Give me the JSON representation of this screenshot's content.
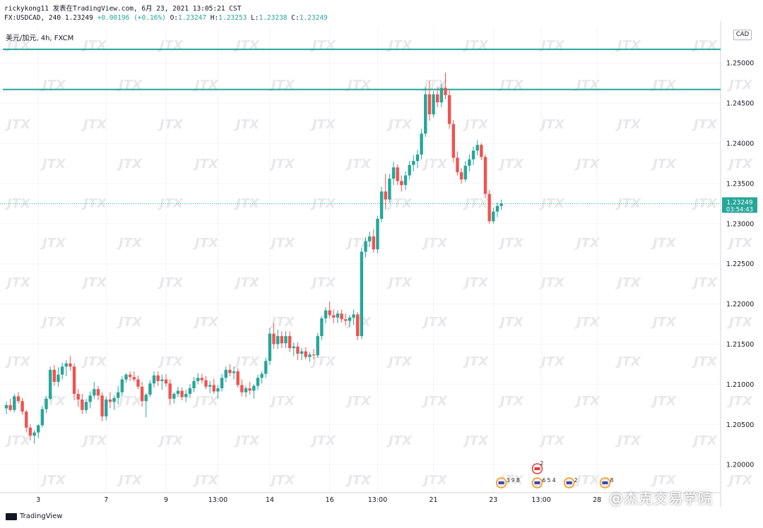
{
  "header": {
    "author_line": "rickykong11 发表在TradingView.com, 6月 23, 2021 13:05:21 CST",
    "ohlc_prefix": "FX:USDCAD, 240",
    "ohlc_last": "1.23249",
    "ohlc_change": "+0.00196 (+0.16%)",
    "o_label": "O:",
    "o_value": "1.23247",
    "h_label": "H:",
    "h_value": "1.23253",
    "l_label": "L:",
    "l_value": "1.23238",
    "c_label": "C:",
    "c_value": "1.23249"
  },
  "symbol_line": "美元/加元, 4h, FXCM",
  "currency": "CAD",
  "last_price": {
    "value": "1.23249",
    "countdown": "03:54:43"
  },
  "branding": {
    "logo": "TradingView",
    "watermark": "JTX",
    "wechat": "@杰克交易学院"
  },
  "colors": {
    "up": "#26a69a",
    "down": "#ef5350",
    "hline": "#26a69a",
    "grid": "#f0f3fa"
  },
  "event_markers": [
    {
      "icon": "us-flag-icon",
      "label": "3 9 8",
      "x_index": 124
    },
    {
      "icon": "us-flag-icon",
      "label": "6 5 4",
      "x_index": 133
    },
    {
      "icon": "ca-flag-icon",
      "label": "2",
      "x_index": 133,
      "stacked": true
    },
    {
      "icon": "us-flag-icon",
      "label": "2",
      "x_index": 141
    },
    {
      "icon": "us-flag-icon",
      "label": "8",
      "x_index": 150
    }
  ],
  "chart_data": {
    "type": "candlestick",
    "instrument": "USDCAD",
    "timeframe": "4h",
    "y_ticks": [
      "1.25000",
      "1.24500",
      "1.24000",
      "1.23500",
      "1.23000",
      "1.22500",
      "1.22000",
      "1.21500",
      "1.21000",
      "1.20500",
      "1.20000"
    ],
    "ylim": [
      1.1965,
      1.2545
    ],
    "x_ticks": [
      {
        "label": "3",
        "index": 8
      },
      {
        "label": "7",
        "index": 25
      },
      {
        "label": "9",
        "index": 40
      },
      {
        "label": "13:00",
        "index": 53
      },
      {
        "label": "14",
        "index": 66
      },
      {
        "label": "16",
        "index": 81
      },
      {
        "label": "13:00",
        "index": 93
      },
      {
        "label": "21",
        "index": 107
      },
      {
        "label": "23",
        "index": 122
      },
      {
        "label": "13:00",
        "index": 134
      },
      {
        "label": "28",
        "index": 148
      }
    ],
    "x_count": 181,
    "horizontal_lines": [
      1.2517,
      1.2467
    ],
    "last_price_line": 1.23249,
    "grid": true,
    "candles": [
      [
        1.207,
        1.2078,
        1.2063,
        1.2074
      ],
      [
        1.2074,
        1.2082,
        1.2066,
        1.2068
      ],
      [
        1.2068,
        1.2088,
        1.2065,
        1.2085
      ],
      [
        1.2085,
        1.209,
        1.2076,
        1.2079
      ],
      [
        1.2079,
        1.2083,
        1.2062,
        1.2066
      ],
      [
        1.2066,
        1.2068,
        1.204,
        1.2046
      ],
      [
        1.2046,
        1.205,
        1.203,
        1.2036
      ],
      [
        1.2036,
        1.2043,
        1.2026,
        1.204
      ],
      [
        1.204,
        1.205,
        1.2033,
        1.2049
      ],
      [
        1.2049,
        1.2072,
        1.2046,
        1.2069
      ],
      [
        1.2069,
        1.2085,
        1.2064,
        1.2082
      ],
      [
        1.2082,
        1.2122,
        1.208,
        1.2118
      ],
      [
        1.2118,
        1.2124,
        1.2098,
        1.2103
      ],
      [
        1.2103,
        1.2121,
        1.2097,
        1.2112
      ],
      [
        1.2112,
        1.2127,
        1.2106,
        1.2122
      ],
      [
        1.2122,
        1.213,
        1.211,
        1.2126
      ],
      [
        1.2126,
        1.2135,
        1.2117,
        1.2122
      ],
      [
        1.2122,
        1.2126,
        1.208,
        1.2088
      ],
      [
        1.2088,
        1.2094,
        1.2072,
        1.2081
      ],
      [
        1.2081,
        1.2088,
        1.2063,
        1.2068
      ],
      [
        1.2068,
        1.2082,
        1.2064,
        1.2078
      ],
      [
        1.2078,
        1.2091,
        1.207,
        1.2086
      ],
      [
        1.2086,
        1.2103,
        1.2082,
        1.2094
      ],
      [
        1.2094,
        1.2098,
        1.208,
        1.2086
      ],
      [
        1.2086,
        1.209,
        1.2054,
        1.206
      ],
      [
        1.206,
        1.2085,
        1.2055,
        1.2081
      ],
      [
        1.2081,
        1.209,
        1.207,
        1.2078
      ],
      [
        1.2078,
        1.2086,
        1.2068,
        1.2083
      ],
      [
        1.2083,
        1.2098,
        1.2075,
        1.209
      ],
      [
        1.209,
        1.211,
        1.2085,
        1.2106
      ],
      [
        1.2106,
        1.2114,
        1.2102,
        1.2112
      ],
      [
        1.2112,
        1.2116,
        1.2104,
        1.2109
      ],
      [
        1.2109,
        1.2116,
        1.2103,
        1.2106
      ],
      [
        1.2106,
        1.2111,
        1.2094,
        1.2097
      ],
      [
        1.2097,
        1.2103,
        1.2072,
        1.2079
      ],
      [
        1.2079,
        1.2089,
        1.2059,
        1.2087
      ],
      [
        1.2087,
        1.2105,
        1.2084,
        1.2101
      ],
      [
        1.2101,
        1.2116,
        1.2096,
        1.2111
      ],
      [
        1.2111,
        1.2116,
        1.2098,
        1.2104
      ],
      [
        1.2104,
        1.2112,
        1.2093,
        1.2106
      ],
      [
        1.2106,
        1.2113,
        1.2097,
        1.2101
      ],
      [
        1.2101,
        1.2106,
        1.2074,
        1.2082
      ],
      [
        1.2082,
        1.209,
        1.2076,
        1.2088
      ],
      [
        1.2088,
        1.2097,
        1.2084,
        1.2092
      ],
      [
        1.2092,
        1.2096,
        1.208,
        1.2084
      ],
      [
        1.2084,
        1.2093,
        1.2078,
        1.2088
      ],
      [
        1.2088,
        1.21,
        1.2083,
        1.2095
      ],
      [
        1.2095,
        1.2109,
        1.209,
        1.2104
      ],
      [
        1.2104,
        1.2114,
        1.21,
        1.2108
      ],
      [
        1.2108,
        1.2113,
        1.2101,
        1.2105
      ],
      [
        1.2105,
        1.211,
        1.2094,
        1.2097
      ],
      [
        1.2097,
        1.2104,
        1.2089,
        1.2099
      ],
      [
        1.2099,
        1.2107,
        1.2088,
        1.2091
      ],
      [
        1.2091,
        1.2099,
        1.2082,
        1.2095
      ],
      [
        1.2095,
        1.2113,
        1.2091,
        1.2108
      ],
      [
        1.2108,
        1.2122,
        1.2103,
        1.2118
      ],
      [
        1.2118,
        1.2125,
        1.211,
        1.2114
      ],
      [
        1.2114,
        1.2122,
        1.2106,
        1.2116
      ],
      [
        1.2116,
        1.212,
        1.2096,
        1.2099
      ],
      [
        1.2099,
        1.2106,
        1.2085,
        1.209
      ],
      [
        1.209,
        1.2098,
        1.2084,
        1.2095
      ],
      [
        1.2095,
        1.2103,
        1.2087,
        1.2092
      ],
      [
        1.2092,
        1.21,
        1.2082,
        1.2098
      ],
      [
        1.2098,
        1.2112,
        1.2093,
        1.2108
      ],
      [
        1.2108,
        1.2116,
        1.2101,
        1.2113
      ],
      [
        1.2113,
        1.2133,
        1.2108,
        1.2129
      ],
      [
        1.2129,
        1.217,
        1.2124,
        1.2163
      ],
      [
        1.2163,
        1.2176,
        1.2144,
        1.215
      ],
      [
        1.215,
        1.2168,
        1.2144,
        1.216
      ],
      [
        1.216,
        1.2166,
        1.2145,
        1.2151
      ],
      [
        1.2151,
        1.2166,
        1.2145,
        1.216
      ],
      [
        1.216,
        1.2166,
        1.214,
        1.2145
      ],
      [
        1.2145,
        1.2152,
        1.2135,
        1.2147
      ],
      [
        1.2147,
        1.2152,
        1.213,
        1.2138
      ],
      [
        1.2138,
        1.2145,
        1.213,
        1.2141
      ],
      [
        1.2141,
        1.2146,
        1.2131,
        1.2134
      ],
      [
        1.2134,
        1.214,
        1.2128,
        1.2137
      ],
      [
        1.2137,
        1.2144,
        1.2131,
        1.2136
      ],
      [
        1.2136,
        1.2164,
        1.2133,
        1.216
      ],
      [
        1.216,
        1.2185,
        1.2155,
        1.2182
      ],
      [
        1.2182,
        1.2196,
        1.2176,
        1.2192
      ],
      [
        1.2192,
        1.2203,
        1.2182,
        1.2186
      ],
      [
        1.2186,
        1.2193,
        1.2176,
        1.2183
      ],
      [
        1.2183,
        1.2192,
        1.2176,
        1.2188
      ],
      [
        1.2188,
        1.2193,
        1.2177,
        1.2181
      ],
      [
        1.2181,
        1.2188,
        1.2173,
        1.2179
      ],
      [
        1.2179,
        1.2186,
        1.2171,
        1.2183
      ],
      [
        1.2183,
        1.2193,
        1.2174,
        1.2187
      ],
      [
        1.2187,
        1.219,
        1.2155,
        1.216
      ],
      [
        1.216,
        1.227,
        1.2156,
        1.2265
      ],
      [
        1.2265,
        1.2283,
        1.2258,
        1.2278
      ],
      [
        1.2278,
        1.229,
        1.2271,
        1.2284
      ],
      [
        1.2284,
        1.2293,
        1.2264,
        1.2268
      ],
      [
        1.2268,
        1.231,
        1.2263,
        1.2306
      ],
      [
        1.2306,
        1.2346,
        1.2302,
        1.234
      ],
      [
        1.234,
        1.2362,
        1.2318,
        1.233
      ],
      [
        1.233,
        1.2362,
        1.2326,
        1.2356
      ],
      [
        1.2356,
        1.2377,
        1.2348,
        1.237
      ],
      [
        1.237,
        1.2374,
        1.2348,
        1.2353
      ],
      [
        1.2353,
        1.236,
        1.234,
        1.2348
      ],
      [
        1.2348,
        1.2365,
        1.2342,
        1.236
      ],
      [
        1.236,
        1.2378,
        1.2355,
        1.2373
      ],
      [
        1.2373,
        1.2385,
        1.2365,
        1.2378
      ],
      [
        1.2378,
        1.2392,
        1.2369,
        1.2386
      ],
      [
        1.2386,
        1.2418,
        1.238,
        1.2412
      ],
      [
        1.2412,
        1.247,
        1.2408,
        1.2461
      ],
      [
        1.2461,
        1.2478,
        1.2428,
        1.2436
      ],
      [
        1.2436,
        1.2465,
        1.2432,
        1.2461
      ],
      [
        1.2461,
        1.247,
        1.2445,
        1.2451
      ],
      [
        1.2451,
        1.2474,
        1.2445,
        1.2469
      ],
      [
        1.2469,
        1.2488,
        1.2455,
        1.246
      ],
      [
        1.246,
        1.2466,
        1.2418,
        1.2424
      ],
      [
        1.2424,
        1.2429,
        1.2376,
        1.2382
      ],
      [
        1.2382,
        1.239,
        1.236,
        1.2364
      ],
      [
        1.2364,
        1.2369,
        1.235,
        1.2355
      ],
      [
        1.2355,
        1.2378,
        1.2352,
        1.2372
      ],
      [
        1.2372,
        1.2386,
        1.2365,
        1.238
      ],
      [
        1.238,
        1.2396,
        1.2373,
        1.2391
      ],
      [
        1.2391,
        1.2404,
        1.2385,
        1.2398
      ],
      [
        1.2398,
        1.24,
        1.2379,
        1.2383
      ],
      [
        1.2383,
        1.2386,
        1.2332,
        1.2337
      ],
      [
        1.2337,
        1.2342,
        1.23,
        1.2303
      ],
      [
        1.2303,
        1.232,
        1.23,
        1.2315
      ],
      [
        1.2315,
        1.2326,
        1.2308,
        1.2322
      ],
      [
        1.2322,
        1.233,
        1.2317,
        1.2325
      ]
    ]
  }
}
